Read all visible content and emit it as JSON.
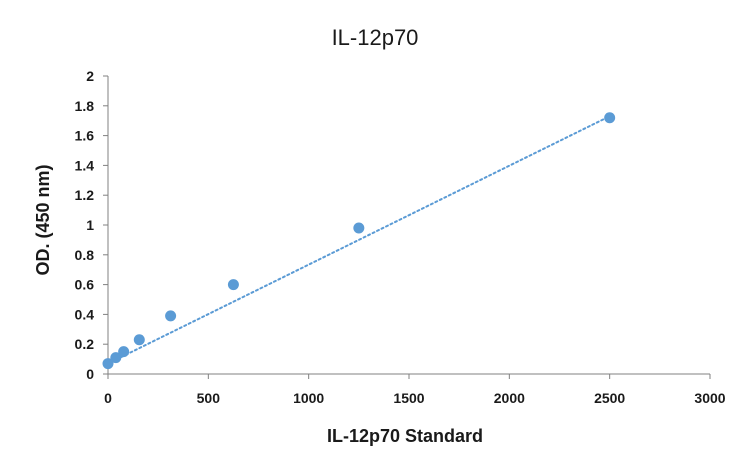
{
  "chart_data": {
    "type": "scatter",
    "title": "IL-12p70",
    "xlabel": "IL-12p70 Standard",
    "ylabel": "OD. (450  nm)",
    "xlim": [
      0,
      3000
    ],
    "ylim": [
      0,
      2
    ],
    "x_ticks": [
      0,
      500,
      1000,
      1500,
      2000,
      2500,
      3000
    ],
    "y_ticks": [
      0,
      0.2,
      0.4,
      0.6,
      0.8,
      1,
      1.2,
      1.4,
      1.6,
      1.8,
      2
    ],
    "x_tick_labels": [
      "0",
      "500",
      "1000",
      "1500",
      "2000",
      "2500",
      "3000"
    ],
    "y_tick_labels": [
      "0",
      "0.2",
      "0.4",
      "0.6",
      "0.8",
      "1",
      "1.2",
      "1.4",
      "1.6",
      "1.8",
      "2"
    ],
    "grid": false,
    "legend": "none",
    "series": [
      {
        "x": [
          0,
          39,
          78,
          156,
          312,
          625,
          1250,
          2500
        ],
        "y": [
          0.07,
          0.11,
          0.15,
          0.23,
          0.39,
          0.6,
          0.98,
          1.72
        ],
        "marker_color": "#5b9bd5"
      }
    ],
    "trendline": {
      "style": "dotted",
      "color": "#5b9bd5",
      "x": [
        0,
        2500
      ],
      "y": [
        0.07,
        1.73
      ]
    }
  }
}
